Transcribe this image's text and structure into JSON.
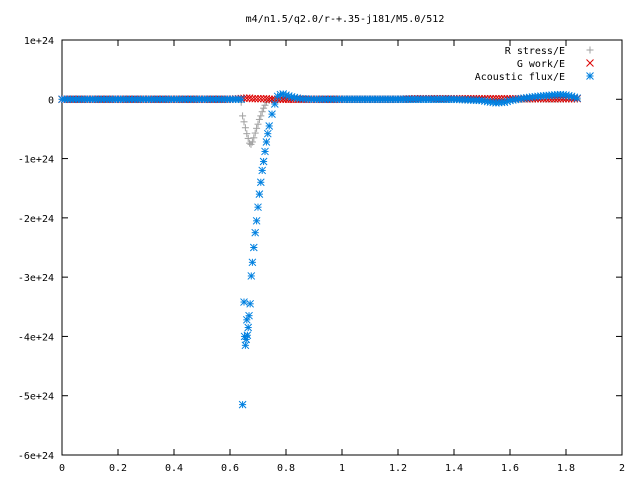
{
  "chart_data": {
    "type": "scatter",
    "title": "m4/n1.5/q2.0/r-+.35-j181/M5.0/512",
    "xlabel": "",
    "ylabel": "",
    "xlim": [
      0,
      2
    ],
    "ylim": [
      -6e+24,
      1e+24
    ],
    "x_ticks": [
      0,
      0.2,
      0.4,
      0.6,
      0.8,
      1,
      1.2,
      1.4,
      1.6,
      1.8,
      2
    ],
    "x_tick_labels": [
      "0",
      "0.2",
      "0.4",
      "0.6",
      "0.8",
      "1",
      "1.2",
      "1.4",
      "1.6",
      "1.8",
      "2"
    ],
    "y_ticks": [
      1e+24,
      0,
      -1e+24,
      -2e+24,
      -3e+24,
      -4e+24,
      -5e+24,
      -6e+24
    ],
    "y_tick_labels": [
      "1e+24",
      "0",
      "-1e+24",
      "-2e+24",
      "-3e+24",
      "-4e+24",
      "-5e+24",
      "-6e+24"
    ],
    "grid": false,
    "legend_position": "top-right",
    "series": [
      {
        "name": "R stress/E",
        "marker": "plus",
        "color": "#a0a0a0",
        "x": [
          0.0,
          0.1,
          0.2,
          0.3,
          0.4,
          0.5,
          0.6,
          0.63,
          0.64,
          0.645,
          0.65,
          0.655,
          0.66,
          0.665,
          0.67,
          0.675,
          0.68,
          0.685,
          0.69,
          0.695,
          0.7,
          0.705,
          0.71,
          0.715,
          0.72,
          0.725,
          0.73,
          0.74,
          0.76,
          0.8,
          1.0,
          1.2,
          1.4,
          1.6,
          1.8,
          1.84
        ],
        "y": [
          0,
          0,
          0,
          0,
          0,
          0,
          0,
          0,
          -5e+22,
          -2.8e+23,
          -3.8e+23,
          -4.8e+23,
          -5.8e+23,
          -6.6e+23,
          -7.4e+23,
          -7.6e+23,
          -7.2e+23,
          -6.5e+23,
          -5.7e+23,
          -4.9e+23,
          -4.2e+23,
          -3.4e+23,
          -2.8e+23,
          -2.1e+23,
          -1.5e+23,
          -1e+23,
          -5e+22,
          -2e+22,
          0,
          0,
          0,
          0,
          0,
          0,
          0,
          0
        ]
      },
      {
        "name": "G work/E",
        "marker": "cross",
        "color": "#dd0000",
        "x": [
          0.0,
          0.2,
          0.4,
          0.6,
          0.66,
          0.67,
          0.68,
          0.69,
          0.7,
          0.71,
          0.72,
          0.73,
          0.74,
          0.75,
          0.8,
          1.0,
          1.2,
          1.26,
          1.3,
          1.35,
          1.4,
          1.45,
          1.5,
          1.55,
          1.6,
          1.65,
          1.7,
          1.75,
          1.8,
          1.84
        ],
        "y": [
          0,
          0,
          0,
          0,
          2e+22,
          2e+22,
          1e+22,
          1e+22,
          1e+22,
          1e+22,
          1e+22,
          1e+22,
          0.0,
          0.0,
          0,
          0,
          0,
          1e+22,
          1e+22,
          1e+22,
          1e+22,
          1e+22,
          1e+22,
          1e+22,
          1e+22,
          1e+22,
          1e+22,
          1e+22,
          1e+22,
          1e+22
        ]
      },
      {
        "name": "Acoustic flux/E",
        "marker": "star",
        "color": "#0080e0",
        "x": [
          0.0,
          0.05,
          0.1,
          0.15,
          0.2,
          0.25,
          0.3,
          0.35,
          0.4,
          0.45,
          0.5,
          0.55,
          0.6,
          0.64,
          0.645,
          0.65,
          0.652,
          0.655,
          0.658,
          0.66,
          0.662,
          0.665,
          0.668,
          0.672,
          0.676,
          0.68,
          0.685,
          0.69,
          0.695,
          0.7,
          0.705,
          0.71,
          0.715,
          0.72,
          0.725,
          0.73,
          0.735,
          0.74,
          0.75,
          0.76,
          0.77,
          0.78,
          0.79,
          0.8,
          0.82,
          0.85,
          0.9,
          0.95,
          1.0,
          1.1,
          1.2,
          1.3,
          1.4,
          1.45,
          1.5,
          1.52,
          1.55,
          1.58,
          1.6,
          1.65,
          1.7,
          1.75,
          1.78,
          1.8,
          1.82,
          1.84
        ],
        "y": [
          0,
          0,
          0,
          0,
          0,
          0,
          0,
          0,
          0,
          0,
          0,
          0,
          0,
          0,
          -5.15e+24,
          -3.42e+24,
          -4e+24,
          -4.15e+24,
          -4.05e+24,
          -3.72e+24,
          -3.98e+24,
          -3.85e+24,
          -3.65e+24,
          -3.45e+24,
          -2.98e+24,
          -2.75e+24,
          -2.5e+24,
          -2.25e+24,
          -2.05e+24,
          -1.82e+24,
          -1.6e+24,
          -1.4e+24,
          -1.2e+24,
          -1.05e+24,
          -8.8e+23,
          -7.2e+23,
          -5.8e+23,
          -4.5e+23,
          -2.5e+23,
          -8e+22,
          5e+22,
          8e+22,
          9e+22,
          7e+22,
          4e+22,
          1e+22,
          0.0,
          0.0,
          0,
          0,
          0,
          0,
          0,
          -1e+22,
          -2e+22,
          -4e+22,
          -6e+22,
          -5e+22,
          -2e+22,
          2e+22,
          5e+22,
          7e+22,
          8e+22,
          7e+22,
          5e+22,
          2e+22
        ]
      }
    ]
  }
}
